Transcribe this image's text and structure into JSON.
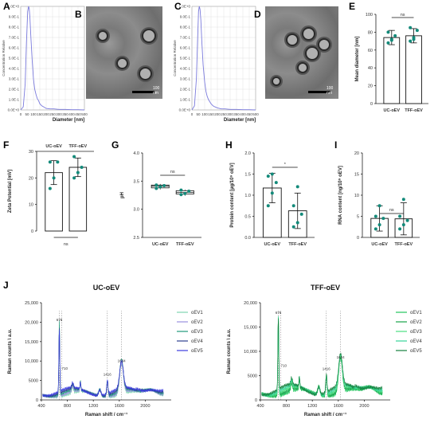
{
  "panels": {
    "A": "A",
    "B": "B",
    "C": "C",
    "D": "D",
    "E": "E",
    "F": "F",
    "G": "G",
    "H": "H",
    "I": "I",
    "J": "J"
  },
  "tem": {
    "B_scale": "100 nm",
    "D_scale": "100 nm"
  },
  "chart_data": [
    {
      "id": "A",
      "type": "line",
      "xlabel": "Diameter [nm]",
      "ylabel": "Concentration Relative",
      "xlim": [
        0,
        500
      ],
      "ylim": [
        0,
        10
      ],
      "xticks": [
        "0",
        "50",
        "100",
        "150",
        "200",
        "250",
        "300",
        "350",
        "400",
        "450",
        "500"
      ],
      "yticks": [
        "0.0E+0",
        "1.0E-1",
        "2.0E-1",
        "3.0E-1",
        "4.0E-1",
        "5.0E-1",
        "6.0E-1",
        "7.0E-1",
        "8.0E-1",
        "9.0E-1",
        "1.0E+0"
      ],
      "x": [
        0,
        20,
        35,
        45,
        55,
        62,
        67,
        72,
        80,
        90,
        100,
        110,
        120,
        130,
        140,
        150,
        165,
        180,
        200,
        230,
        260,
        300,
        350,
        400,
        450,
        500
      ],
      "y": [
        0,
        0.3,
        2.5,
        6.5,
        9.5,
        10,
        9.8,
        9.0,
        7.0,
        4.8,
        3.0,
        2.0,
        1.5,
        1.1,
        0.9,
        0.6,
        0.4,
        0.3,
        0.15,
        0.1,
        0.1,
        0.05,
        0.05,
        0.02,
        0.02,
        0
      ],
      "color": "#7a7adc"
    },
    {
      "id": "C",
      "type": "line",
      "xlabel": "Diameter [nm]",
      "ylabel": "Concentration Relative",
      "xlim": [
        0,
        500
      ],
      "ylim": [
        0,
        10
      ],
      "xticks": [
        "0",
        "50",
        "100",
        "150",
        "200",
        "250",
        "300",
        "350",
        "400",
        "450",
        "500"
      ],
      "yticks": [
        "0.0E+0",
        "1.0E-1",
        "2.0E-1",
        "3.0E-1",
        "4.0E-1",
        "5.0E-1",
        "6.0E-1",
        "7.0E-1",
        "8.0E-1",
        "9.0E-1",
        "1.0E+0"
      ],
      "x": [
        0,
        20,
        35,
        45,
        52,
        58,
        64,
        70,
        78,
        88,
        100,
        110,
        120,
        130,
        140,
        150,
        165,
        180,
        200,
        230,
        260,
        300,
        350,
        400,
        450,
        500
      ],
      "y": [
        0,
        0.4,
        3.0,
        7.0,
        9.5,
        10,
        9.7,
        8.7,
        6.5,
        4.3,
        2.7,
        1.8,
        1.3,
        1.0,
        0.8,
        0.6,
        0.4,
        0.3,
        0.2,
        0.1,
        0.1,
        0.05,
        0.05,
        0.02,
        0.02,
        0
      ],
      "color": "#7a7adc"
    },
    {
      "id": "E",
      "type": "bar",
      "ylabel": "Mean diameter [nm]",
      "ylim": [
        0,
        100
      ],
      "yticks": [
        "0",
        "20",
        "40",
        "60",
        "80",
        "100"
      ],
      "categories": [
        "UC-oEV",
        "TFF-oEV"
      ],
      "values": [
        74,
        76
      ],
      "errors": [
        8,
        8
      ],
      "points": [
        [
          68,
          72,
          76,
          80,
          71
        ],
        [
          70,
          74,
          82,
          85,
          72
        ]
      ],
      "sig": "ns"
    },
    {
      "id": "F",
      "type": "bar",
      "ylabel": "Zeta Potential [mV]",
      "ylim": [
        0,
        -30
      ],
      "yticks": [
        "0",
        "10",
        "20",
        "30"
      ],
      "categories": [
        "UC-oEV",
        "TFF-oEV"
      ],
      "values": [
        -22,
        -24
      ],
      "errors": [
        4.5,
        3.5
      ],
      "points": [
        [
          -16,
          -20,
          -26,
          -26
        ],
        [
          -20,
          -22,
          -24,
          -28
        ]
      ],
      "sig": "ns"
    },
    {
      "id": "G",
      "type": "box",
      "ylabel": "pH",
      "ylim": [
        2.5,
        4.0
      ],
      "yticks": [
        "2.5",
        "3.0",
        "3.5",
        "4.0"
      ],
      "categories": [
        "UC-oEV",
        "TFF-oEV"
      ],
      "boxes": [
        [
          3.35,
          3.38,
          3.41,
          3.43,
          3.45
        ],
        [
          3.24,
          3.27,
          3.3,
          3.33,
          3.35
        ]
      ],
      "points": [
        [
          3.37,
          3.4,
          3.42,
          3.43
        ],
        [
          3.26,
          3.28,
          3.32,
          3.34
        ]
      ],
      "sig": "ns"
    },
    {
      "id": "H",
      "type": "bar",
      "ylabel": "Protein content [µg/10⁹ oEV]",
      "ylim": [
        0,
        2.0
      ],
      "yticks": [
        "0.0",
        "0.5",
        "1.0",
        "1.5",
        "2.0"
      ],
      "categories": [
        "UC-oEV",
        "TFF-oEV"
      ],
      "values": [
        1.17,
        0.63
      ],
      "errors": [
        0.35,
        0.42
      ],
      "points": [
        [
          0.75,
          1.05,
          1.3,
          1.45,
          1.5
        ],
        [
          0.25,
          0.35,
          0.55,
          0.75,
          1.2
        ]
      ],
      "sig": "*"
    },
    {
      "id": "I",
      "type": "bar",
      "ylabel": "RNA content [ng/10⁹ oEV]",
      "ylim": [
        0,
        20
      ],
      "yticks": [
        "0",
        "5",
        "10",
        "15",
        "20"
      ],
      "categories": [
        "UC-oEV",
        "TFF-oEV"
      ],
      "values": [
        4.5,
        4.4
      ],
      "errors": [
        3.0,
        3.8
      ],
      "points": [
        [
          2,
          3,
          4.5,
          5,
          7.5
        ],
        [
          2,
          3,
          4,
          5,
          9
        ]
      ],
      "sig": "ns"
    },
    {
      "id": "J1",
      "type": "line",
      "title": "UC-oEV",
      "xlabel": "Raman shift / cm⁻¹",
      "ylabel": "Raman counts \\ a.u.",
      "xlim": [
        400,
        2400
      ],
      "ylim": [
        0,
        25000
      ],
      "xticks": [
        "400",
        "800",
        "1200",
        "1600",
        "2000"
      ],
      "yticks": [
        "0",
        "5000",
        "10,000",
        "15,000",
        "20,000",
        "25,000"
      ],
      "annotations": [
        "676",
        "710",
        "1416",
        "1634"
      ],
      "annotation_x": [
        676,
        710,
        1416,
        1634
      ],
      "series": [
        {
          "name": "oEV1",
          "color": "#7fd6b0",
          "scale": 0.97
        },
        {
          "name": "oEV2",
          "color": "#9a8fe0",
          "scale": 0.92
        },
        {
          "name": "oEV3",
          "color": "#1f9a7a",
          "scale": 1.0
        },
        {
          "name": "oEV4",
          "color": "#2d3f8f",
          "scale": 0.88
        },
        {
          "name": "oEV5",
          "color": "#3c3ce0",
          "scale": 0.85
        }
      ]
    },
    {
      "id": "J2",
      "type": "line",
      "title": "TFF-oEV",
      "xlabel": "Raman shift / cm⁻¹",
      "ylabel": "Raman counts \\ a.u.",
      "xlim": [
        400,
        2400
      ],
      "ylim": [
        0,
        20000
      ],
      "xticks": [
        "400",
        "800",
        "1200",
        "1600",
        "2000"
      ],
      "yticks": [
        "0",
        "5000",
        "10,000",
        "15,000",
        "20,000"
      ],
      "annotations": [
        "676",
        "710",
        "1416",
        "1634"
      ],
      "annotation_x": [
        676,
        710,
        1416,
        1634
      ],
      "series": [
        {
          "name": "oEV1",
          "color": "#22c55e",
          "scale": 1.0
        },
        {
          "name": "oEV2",
          "color": "#16a34a",
          "scale": 0.97
        },
        {
          "name": "oEV3",
          "color": "#4ade80",
          "scale": 0.95
        },
        {
          "name": "oEV4",
          "color": "#34d399",
          "scale": 0.93
        },
        {
          "name": "oEV5",
          "color": "#15803d",
          "scale": 0.9
        }
      ]
    }
  ]
}
